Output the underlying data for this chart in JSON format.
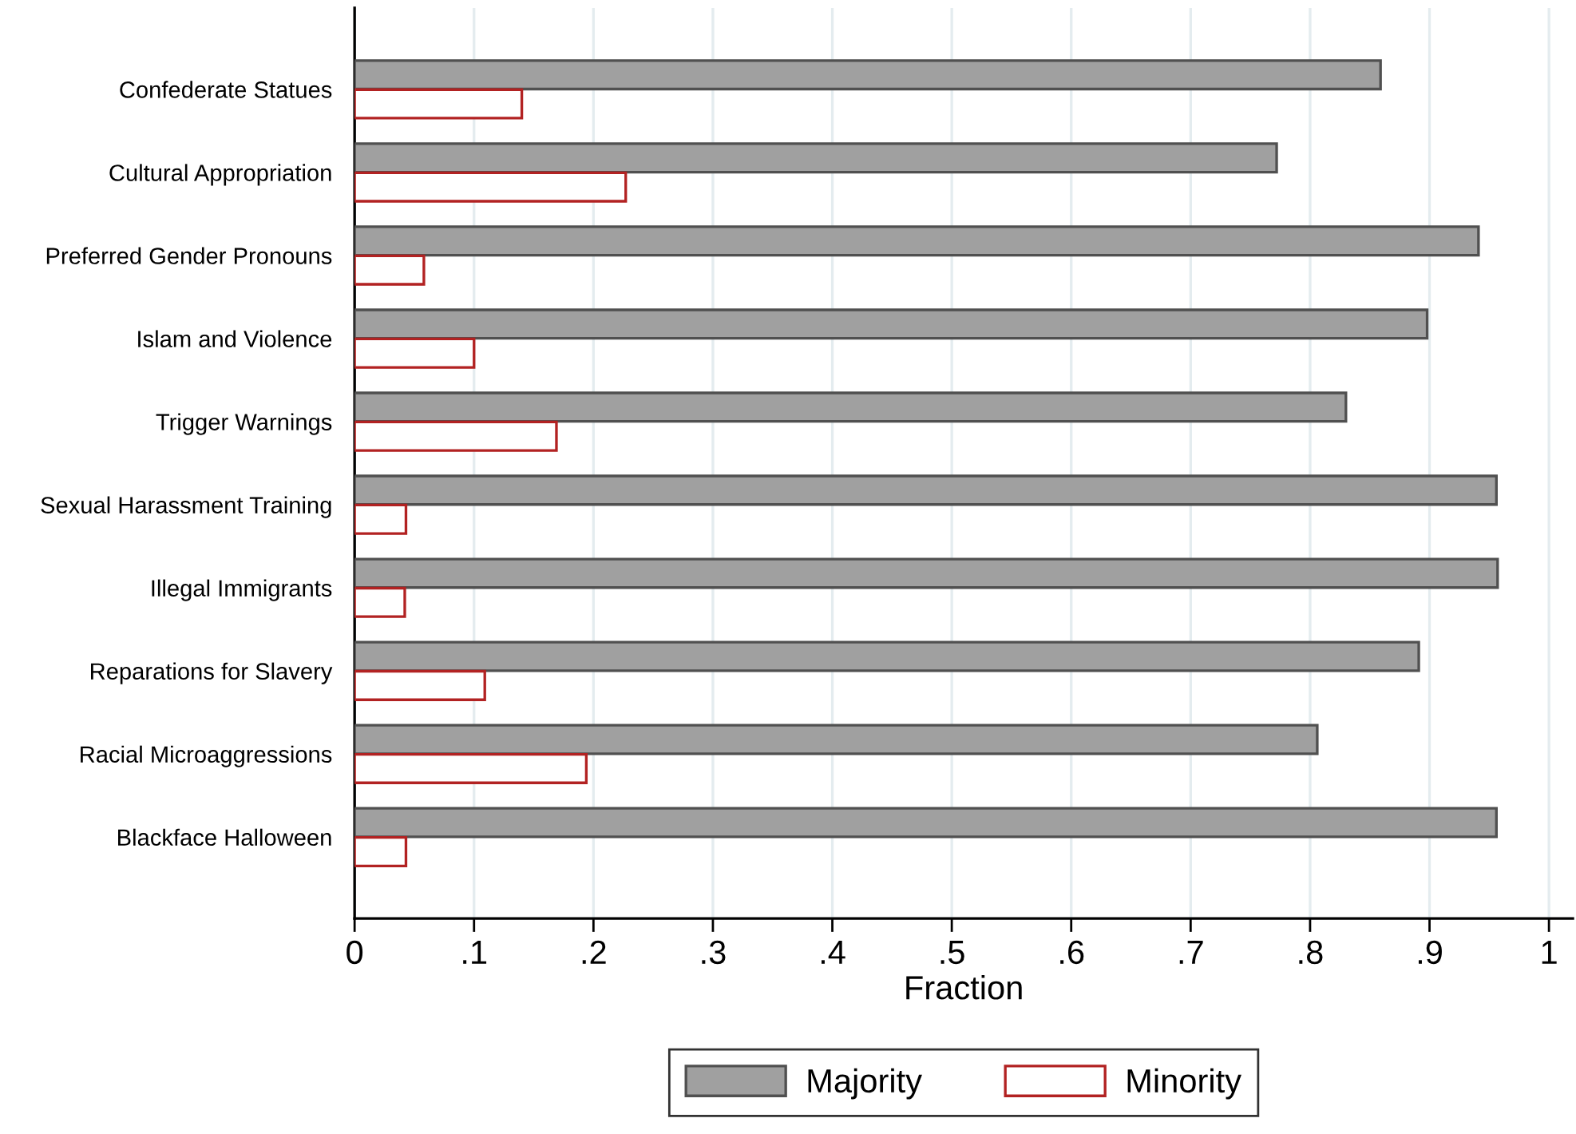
{
  "chart_data": {
    "type": "bar",
    "orientation": "horizontal",
    "xlabel": "Fraction",
    "categories": [
      "Confederate Statues",
      "Cultural Appropriation",
      "Preferred Gender Pronouns",
      "Islam and Violence",
      "Trigger Warnings",
      "Sexual Harassment Training",
      "Illegal Immigrants",
      "Reparations for Slavery",
      "Racial Microaggressions",
      "Blackface Halloween"
    ],
    "series": [
      {
        "name": "Majority",
        "color": "#a0a0a0",
        "values": [
          0.859,
          0.772,
          0.941,
          0.898,
          0.83,
          0.956,
          0.957,
          0.891,
          0.806,
          0.956
        ]
      },
      {
        "name": "Minority",
        "color": "#b22222",
        "values": [
          0.14,
          0.227,
          0.058,
          0.1,
          0.169,
          0.043,
          0.042,
          0.109,
          0.194,
          0.043
        ]
      }
    ],
    "xlim": [
      0,
      1.02
    ],
    "xticks": [
      0,
      {
        "value": 0.1,
        "label": ".1"
      },
      {
        "value": 0.2,
        "label": ".2"
      },
      {
        "value": 0.3,
        "label": ".3"
      },
      {
        "value": 0.4,
        "label": ".4"
      },
      {
        "value": 0.5,
        "label": ".5"
      },
      {
        "value": 0.6,
        "label": ".6"
      },
      {
        "value": 0.7,
        "label": ".7"
      },
      {
        "value": 0.8,
        "label": ".8"
      },
      {
        "value": 0.9,
        "label": ".9"
      },
      1
    ],
    "grid": "x",
    "legend": "bottom"
  }
}
